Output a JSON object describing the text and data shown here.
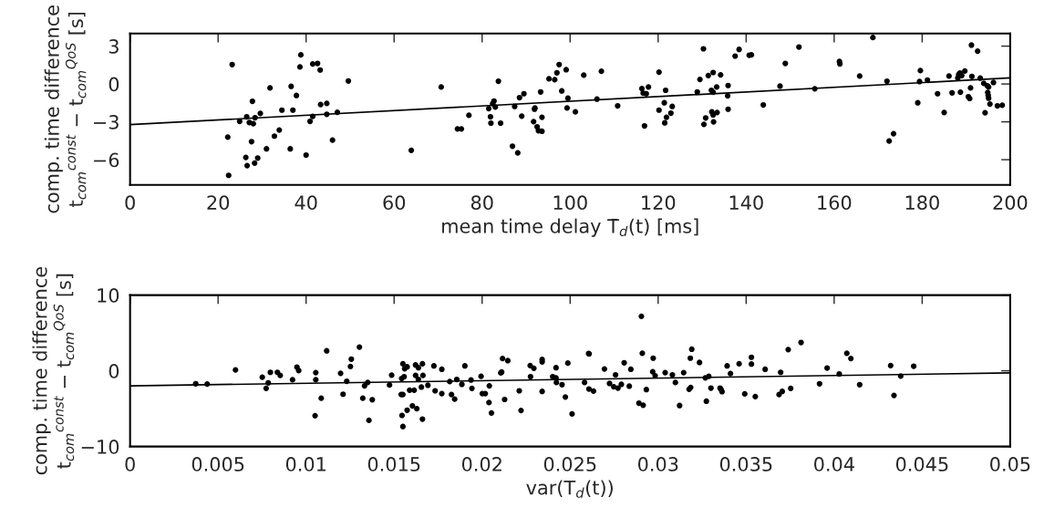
{
  "chart_data": [
    {
      "type": "scatter",
      "xlabel": "mean time delay T̄$_{d}$(t) [ms]",
      "ylabel": "comp. time difference\nt$_{com}$$^{const}$ − t$_{com}$$^{QoS}$ [s]",
      "xlim": [
        0,
        200
      ],
      "ylim": [
        -8,
        4
      ],
      "xticks": [
        0,
        20,
        40,
        60,
        80,
        100,
        120,
        140,
        160,
        180,
        200
      ],
      "yticks": [
        {
          "value": -6,
          "label": "−6"
        },
        {
          "value": -3,
          "label": "−3"
        },
        0,
        3
      ],
      "series": [
        {
          "marker": "circle",
          "color": "#000000",
          "x": [
            23.2,
            38.8,
            38.6,
            41.5,
            42.6,
            43.2,
            49.6,
            31.8,
            36.6,
            37.8,
            27.8,
            43.3,
            44.7,
            34.5,
            37.0,
            29.6,
            26.5,
            28.4,
            44.7,
            47.1,
            41.5,
            40.9,
            24.9,
            27.1,
            28.0,
            22.2,
            32.8,
            33.9,
            27.6,
            46.0,
            31.0,
            36.4,
            40.0,
            26.3,
            29.0,
            26.6,
            28.3,
            22.4,
            63.9,
            70.7,
            74.4,
            75.3,
            77.0,
            81.5,
            81.9,
            82.0,
            82.4,
            82.7,
            83.0,
            83.7,
            84.2,
            86.9,
            88.1,
            87.4,
            88.5,
            89.0,
            89.5,
            91.7,
            91.9,
            92.0,
            92.5,
            92.8,
            93.6,
            93.6,
            93.3,
            95.2,
            96.5,
            97.0,
            97.5,
            98.1,
            99.1,
            99.5,
            99.3,
            101.2,
            103.1,
            106.1,
            107.1,
            110.8,
            116.3,
            116.6,
            117.3,
            117.8,
            116.9,
            120.2,
            120.2,
            121.4,
            121.7,
            121.5,
            121.9,
            122.9,
            123.2,
            130.3,
            129.5,
            131.4,
            132.5,
            134.2,
            128.9,
            132.1,
            132.5,
            133.3,
            135.9,
            135.8,
            135.9,
            130.8,
            130.4,
            132.2,
            132.5,
            133.4,
            132.6,
            137.5,
            138.4,
            140.7,
            141.2,
            143.9,
            147.7,
            148.9,
            152.0,
            155.6,
            161.2,
            161.3,
            165.8,
            168.8,
            172.0,
            172.5,
            173.5,
            179.0,
            179.6,
            179.4,
            181.2,
            183.5,
            185.0,
            186.1,
            186.8,
            188.1,
            188.3,
            188.6,
            189.0,
            189.7,
            188.7,
            190.5,
            190.8,
            191.0,
            191.2,
            192.6,
            191.3,
            193.2,
            194.0,
            194.8,
            195.1,
            194.9,
            195.0,
            195.1,
            195.4,
            194.3,
            196.2,
            197.1,
            198.2
          ],
          "values": [
            1.54,
            2.31,
            1.35,
            1.59,
            1.63,
            1.11,
            0.24,
            -0.31,
            -0.19,
            -0.91,
            -1.37,
            -1.63,
            -1.54,
            -2.07,
            -2.07,
            -2.33,
            -2.6,
            -2.67,
            -2.4,
            -2.24,
            -2.57,
            -2.96,
            -2.96,
            -3.05,
            -3.15,
            -4.21,
            -4.13,
            -3.65,
            -4.57,
            -4.45,
            -5.14,
            -5.14,
            -5.63,
            -5.82,
            -5.87,
            -6.47,
            -6.27,
            -7.24,
            -5.26,
            -0.24,
            -3.56,
            -3.56,
            -2.48,
            -1.95,
            -2.6,
            -3.1,
            -1.56,
            -1.35,
            -1.83,
            0.22,
            -3.1,
            -4.93,
            -5.46,
            -1.78,
            -1.08,
            -2.55,
            -0.77,
            -2.98,
            -2.0,
            -1.9,
            -3.39,
            -3.7,
            -3.75,
            -2.64,
            -0.63,
            0.41,
            0.34,
            0.89,
            1.54,
            -0.55,
            1.13,
            -1.13,
            -1.9,
            -2.21,
            0.7,
            -1.2,
            1.01,
            -1.73,
            -0.36,
            -0.72,
            -0.77,
            -0.24,
            -3.32,
            0.94,
            -2.07,
            -1.49,
            -0.5,
            -3.08,
            -2.64,
            -2.31,
            -1.78,
            2.79,
            0.36,
            0.67,
            0.91,
            0.72,
            -0.63,
            -0.5,
            -0.65,
            -0.24,
            -0.12,
            -0.94,
            -2.0,
            -2.69,
            -3.2,
            -2.21,
            -2.45,
            -2.26,
            -3.0,
            2.21,
            2.74,
            2.28,
            2.31,
            -1.66,
            -0.17,
            1.63,
            2.93,
            -0.38,
            1.78,
            1.59,
            0.63,
            3.68,
            0.22,
            -4.52,
            -3.94,
            -1.49,
            1.06,
            0.19,
            0.31,
            -0.77,
            -2.26,
            0.63,
            -0.7,
            0.48,
            0.75,
            0.87,
            0.67,
            1.03,
            -0.65,
            -1.01,
            -1.15,
            -0.31,
            3.08,
            2.6,
            0.6,
            0.46,
            0.05,
            -0.14,
            -0.24,
            -0.67,
            -0.89,
            -1.13,
            -1.59,
            -2.28,
            0.12,
            -1.73,
            -1.68
          ]
        },
        {
          "type": "line",
          "color": "#000000",
          "x": [
            0,
            200
          ],
          "values": [
            -3.22,
            0.48
          ]
        }
      ]
    },
    {
      "type": "scatter",
      "xlabel": "var(T$_{d}$(t))",
      "ylabel": "comp. time difference\nt$_{com}$$^{const}$ − t$_{com}$$^{QoS}$ [s]",
      "xlim": [
        0,
        0.05
      ],
      "ylim": [
        -10,
        10
      ],
      "xticks": [
        0,
        0.005,
        0.01,
        0.015,
        0.02,
        0.025,
        0.03,
        0.035,
        0.04,
        0.045,
        0.05
      ],
      "yticks": [
        {
          "value": -10,
          "label": "−10"
        },
        0,
        10
      ],
      "series": [
        {
          "marker": "circle",
          "color": "#000000",
          "x": [
            0.00373,
            0.00438,
            0.00599,
            0.00751,
            0.00785,
            0.00773,
            0.00797,
            0.00837,
            0.00853,
            0.00923,
            0.00948,
            0.00958,
            0.01055,
            0.01055,
            0.01051,
            0.01086,
            0.01117,
            0.01196,
            0.0121,
            0.01231,
            0.01252,
            0.01257,
            0.01303,
            0.01322,
            0.01332,
            0.0135,
            0.01357,
            0.01376,
            0.01474,
            0.01486,
            0.0154,
            0.0155,
            0.01545,
            0.0155,
            0.01543,
            0.0155,
            0.01557,
            0.0156,
            0.01574,
            0.01574,
            0.01588,
            0.01604,
            0.01614,
            0.01622,
            0.01622,
            0.01629,
            0.01638,
            0.01638,
            0.01655,
            0.01661,
            0.01664,
            0.01661,
            0.01692,
            0.01726,
            0.01733,
            0.01771,
            0.01771,
            0.01816,
            0.01826,
            0.01844,
            0.01856,
            0.01885,
            0.01902,
            0.01937,
            0.01942,
            0.01994,
            0.02001,
            0.02018,
            0.02039,
            0.02041,
            0.02053,
            0.02106,
            0.02111,
            0.02116,
            0.02146,
            0.02128,
            0.02211,
            0.02221,
            0.02275,
            0.02273,
            0.02294,
            0.02341,
            0.02341,
            0.02341,
            0.02401,
            0.0242,
            0.02422,
            0.0242,
            0.02454,
            0.02473,
            0.02487,
            0.02511,
            0.02582,
            0.02605,
            0.02608,
            0.02607,
            0.02633,
            0.02695,
            0.02724,
            0.02748,
            0.02758,
            0.02772,
            0.02791,
            0.02807,
            0.02836,
            0.02845,
            0.02891,
            0.02915,
            0.02905,
            0.0291,
            0.02933,
            0.02972,
            0.02969,
            0.02983,
            0.0304,
            0.03081,
            0.03098,
            0.03122,
            0.03145,
            0.03183,
            0.03191,
            0.03176,
            0.03185,
            0.03235,
            0.03268,
            0.03288,
            0.03274,
            0.033,
            0.03352,
            0.03357,
            0.03363,
            0.03392,
            0.03411,
            0.0346,
            0.03492,
            0.0353,
            0.0353,
            0.03552,
            0.03608,
            0.03687,
            0.03705,
            0.03696,
            0.03739,
            0.03753,
            0.03812,
            0.03917,
            0.0396,
            0.04029,
            0.04072,
            0.04095,
            0.04145,
            0.04321,
            0.0434,
            0.04378,
            0.04452
          ],
          "values": [
            -1.71,
            -1.75,
            0.12,
            -0.85,
            -1.59,
            -2.32,
            -0.2,
            -0.2,
            -0.61,
            -1.18,
            0.49,
            0.04,
            -0.24,
            -1.18,
            -5.93,
            -3.62,
            2.64,
            -0.33,
            -3.09,
            -1.38,
            0.57,
            1.54,
            3.13,
            -3.62,
            -1.99,
            -1.54,
            -6.54,
            -3.82,
            -1.87,
            -0.57,
            -3.13,
            -3.13,
            -5.89,
            -7.36,
            -1.02,
            0.93,
            -0.77,
            0.28,
            0.53,
            -5.2,
            -2.56,
            -4.63,
            -2.56,
            0.77,
            -0.61,
            -5.0,
            0.41,
            -1.14,
            -2.15,
            0.93,
            -0.61,
            -6.38,
            -1.91,
            0.65,
            -2.64,
            0.2,
            -3.01,
            -1.42,
            -3.13,
            -3.74,
            -1.14,
            -1.79,
            0.65,
            -1.22,
            -2.32,
            -0.73,
            -3.01,
            -3.01,
            -4.19,
            -1.99,
            -5.57,
            -0.28,
            -0.16,
            1.63,
            1.34,
            -3.78,
            -2.64,
            -5.24,
            -0.77,
            0.69,
            0.33,
            1.5,
            1.18,
            -2.72,
            -0.77,
            -0.93,
            -1.54,
            0.41,
            -1.83,
            -3.46,
            1.02,
            -5.69,
            -1.54,
            2.28,
            2.24,
            -2.4,
            -2.68,
            0.24,
            -1.67,
            -2.11,
            -0.53,
            -2.28,
            -1.79,
            1.06,
            -2.03,
            0.2,
            -4.27,
            -4.55,
            7.2,
            2.32,
            -2.48,
            1.67,
            -0.12,
            -0.65,
            -0.24,
            -0.53,
            -1.54,
            -4.59,
            -0.24,
            1.67,
            2.85,
            -2.44,
            -2.2,
            1.1,
            -0.93,
            -0.73,
            -4.02,
            -2.28,
            -2.28,
            -2.44,
            -2.76,
            0.65,
            -0.37,
            0.93,
            -3.05,
            1.79,
            0.89,
            -3.41,
            0.2,
            -3.13,
            -2.72,
            -0.2,
            2.8,
            -2.32,
            3.74,
            -1.71,
            0.37,
            -0.41,
            2.32,
            1.63,
            -1.83,
            0.69,
            -3.25,
            -0.69,
            0.61
          ]
        },
        {
          "type": "line",
          "color": "#000000",
          "x": [
            0,
            0.05
          ],
          "values": [
            -1.99,
            -0.28
          ]
        }
      ]
    }
  ]
}
